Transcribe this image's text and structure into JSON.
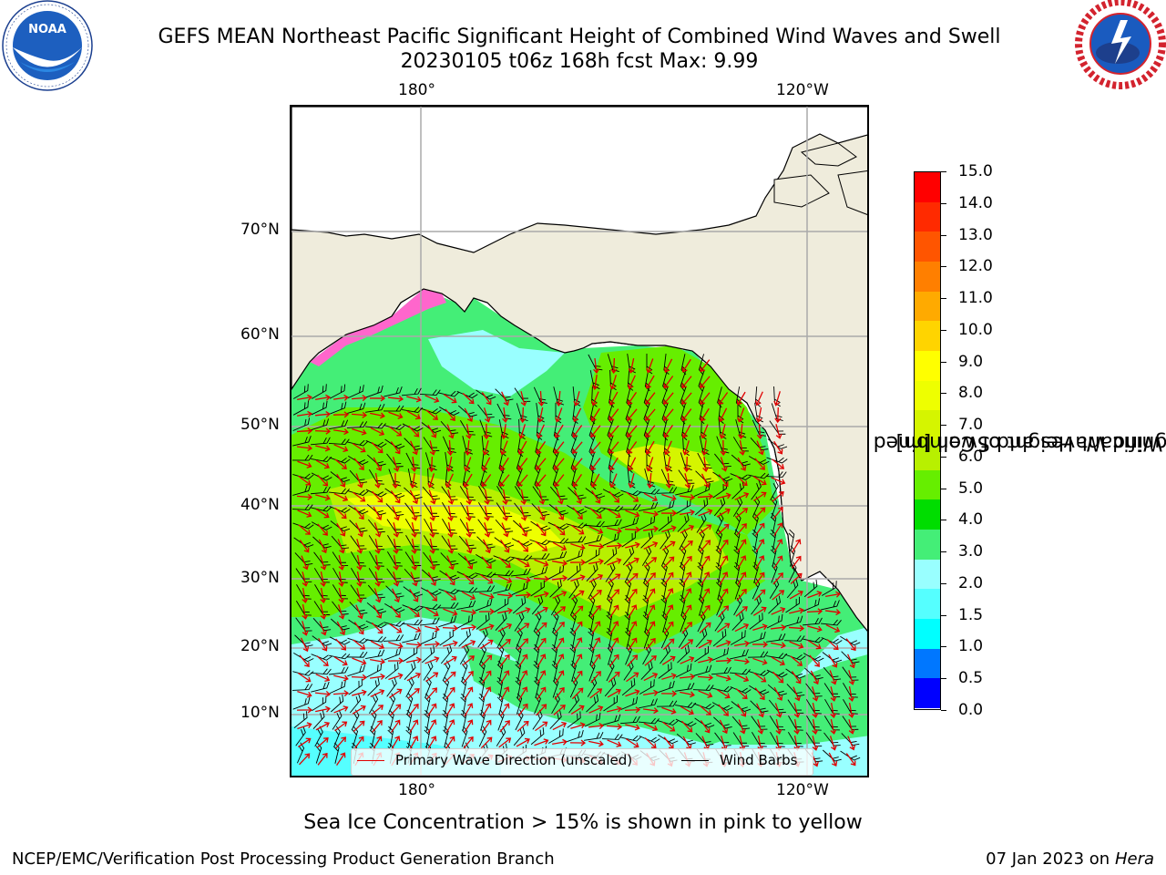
{
  "title_line1": "GEFS MEAN Northeast Pacific Significant Height of Combined Wind Waves and Swell",
  "title_line2": "20230105 t06z 168h fcst   Max: 9.99",
  "logos": {
    "noaa": {
      "center_text": "NOAA",
      "ring_text": "NATIONAL OCEANIC AND ATMOSPHERIC ADMINISTRATION · U.S. DEPARTMENT OF COMMERCE",
      "color": "#0a4a9e"
    },
    "nws": {
      "ring_text": "NATIONAL WEATHER SERVICE",
      "color": "#d3232e"
    }
  },
  "map": {
    "lon_ticks_top": [
      "180°",
      "120°W"
    ],
    "lon_ticks_bottom": [
      "180°",
      "120°W"
    ],
    "lat_ticks": [
      "70°N",
      "60°N",
      "50°N",
      "40°N",
      "30°N",
      "20°N",
      "10°N"
    ],
    "land_color": "#efecdc",
    "ocean_color": "#ffffff",
    "gridlines": true
  },
  "legend": {
    "items": [
      {
        "label": "Primary Wave Direction (unscaled)",
        "color": "#e00000"
      },
      {
        "label": "Wind Barbs",
        "color": "#000000"
      }
    ]
  },
  "colorbar": {
    "title_line1": "Significant Height of Combined",
    "title_line2": "Wind Waves and Swell [m]",
    "ticks": [
      "15.0",
      "14.0",
      "13.0",
      "12.0",
      "11.0",
      "10.0",
      "9.0",
      "8.0",
      "7.0",
      "6.0",
      "5.0",
      "4.0",
      "3.0",
      "2.0",
      "1.5",
      "1.0",
      "0.5",
      "0.0"
    ],
    "colors_top_to_bottom": [
      "#ff0000",
      "#ff2a00",
      "#ff5500",
      "#ff7f00",
      "#ffaa00",
      "#ffd400",
      "#ffff00",
      "#eeff00",
      "#d5f500",
      "#b8f000",
      "#66ee00",
      "#00dd00",
      "#44ee77",
      "#99ffff",
      "#55ffff",
      "#00ffff",
      "#0077ff",
      "#0000ff"
    ]
  },
  "note": "Sea Ice Concentration > 15% is shown in pink to yellow",
  "footer_left": "NCEP/EMC/Verification Post Processing Product Generation Branch",
  "footer_right_date": "07 Jan 2023 on ",
  "footer_right_host": "Hera"
}
